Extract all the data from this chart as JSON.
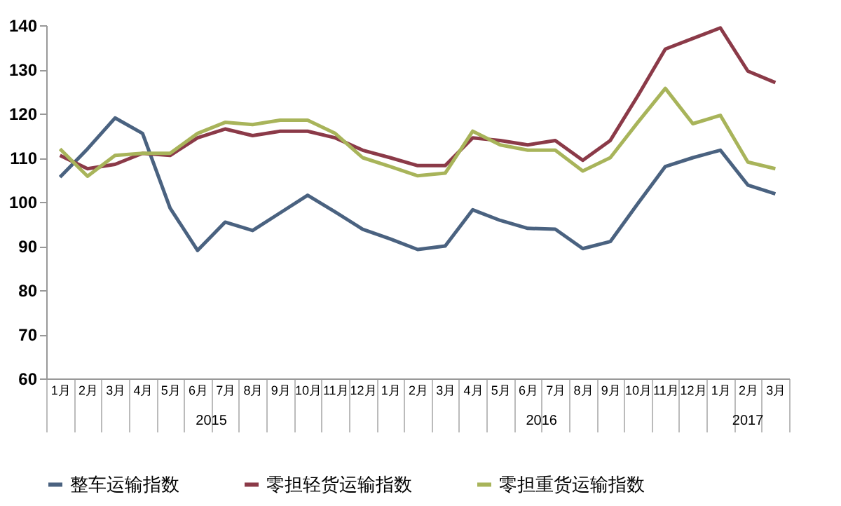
{
  "chart_data": {
    "type": "line",
    "categories": [
      "1月",
      "2月",
      "3月",
      "4月",
      "5月",
      "6月",
      "7月",
      "8月",
      "9月",
      "10月",
      "11月",
      "12月",
      "1月",
      "2月",
      "3月",
      "4月",
      "5月",
      "6月",
      "7月",
      "8月",
      "9月",
      "10月",
      "11月",
      "12月",
      "1月",
      "2月",
      "3月"
    ],
    "series": [
      {
        "name": "整车运输指数",
        "color": "#4a6280",
        "values": [
          105.6,
          112,
          119,
          115.5,
          98.6,
          89,
          95.4,
          93.5,
          97.5,
          101.5,
          97.7,
          93.8,
          91.6,
          89.2,
          90,
          98.2,
          95.8,
          94,
          93.8,
          89.4,
          91,
          99.6,
          108,
          110,
          111.7,
          103.8,
          101.8
        ]
      },
      {
        "name": "零担轻货运输指数",
        "color": "#8b3a48",
        "values": [
          110.5,
          107.5,
          108.5,
          111,
          110.5,
          114.5,
          116.5,
          115,
          116,
          116,
          114.5,
          111.7,
          110,
          108.2,
          108.2,
          114.5,
          113.9,
          112.9,
          113.9,
          109.4,
          113.9,
          124,
          134.6,
          137,
          139.4,
          129.6,
          127
        ]
      },
      {
        "name": "零担重货运输指数",
        "color": "#a8b45a",
        "values": [
          112,
          105.8,
          110.5,
          111,
          111,
          115.5,
          118,
          117.5,
          118.5,
          118.5,
          115.5,
          110,
          108,
          105.9,
          106.5,
          116,
          112.9,
          111.7,
          111.7,
          107,
          110,
          118,
          125.7,
          117.7,
          119.6,
          109,
          107.5
        ]
      }
    ],
    "ylim": [
      60,
      140
    ],
    "yticks": [
      60,
      70,
      80,
      90,
      100,
      110,
      120,
      130,
      140
    ],
    "annotations": [
      "2015",
      "2016",
      "2017"
    ],
    "grid": false,
    "legend": "bottom"
  }
}
